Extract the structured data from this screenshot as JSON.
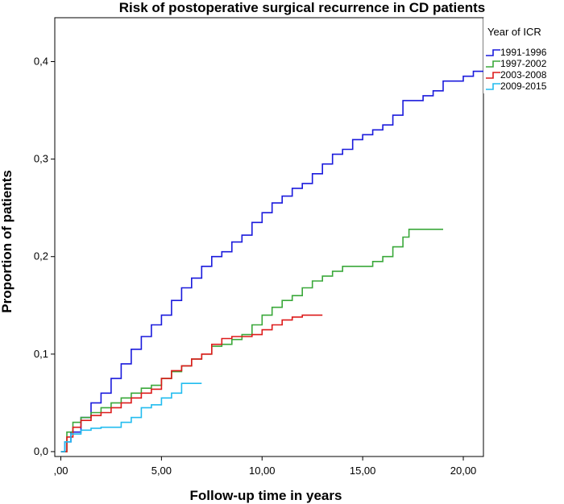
{
  "chart_data": {
    "type": "line",
    "step": true,
    "title": "Risk of postoperative surgical recurrence in CD patients",
    "xlabel": "Follow-up time in years",
    "ylabel": "Proportion of patients",
    "xlim": [
      -0.3,
      21
    ],
    "ylim": [
      -0.005,
      0.445
    ],
    "x_ticks": [
      0,
      5,
      10,
      15,
      20
    ],
    "x_tick_labels": [
      ",00",
      "5,00",
      "10,00",
      "15,00",
      "20,00"
    ],
    "y_ticks": [
      0,
      0.1,
      0.2,
      0.3,
      0.4
    ],
    "y_tick_labels": [
      "0,0",
      "0,1",
      "0,2",
      "0,3",
      "0,4"
    ],
    "legend": {
      "title": "Year of ICR",
      "position": "top-right"
    },
    "series": [
      {
        "name": "1991-1996",
        "color": "#1a1adc",
        "x": [
          0,
          0.2,
          0.5,
          1.0,
          1.5,
          2.0,
          2.5,
          3.0,
          3.5,
          4.0,
          4.5,
          5.0,
          5.5,
          6.0,
          6.5,
          7.0,
          7.5,
          8.0,
          8.5,
          9.0,
          9.5,
          10.0,
          10.5,
          11.0,
          11.5,
          12.0,
          12.5,
          13.0,
          13.5,
          14.0,
          14.5,
          15.0,
          15.5,
          16.0,
          16.5,
          17.0,
          17.5,
          18.0,
          18.5,
          19.0,
          19.5,
          20.0,
          20.5,
          21.0
        ],
        "y": [
          0.0,
          0.01,
          0.02,
          0.035,
          0.05,
          0.06,
          0.075,
          0.09,
          0.105,
          0.118,
          0.13,
          0.14,
          0.155,
          0.168,
          0.178,
          0.19,
          0.2,
          0.205,
          0.215,
          0.222,
          0.235,
          0.245,
          0.255,
          0.262,
          0.27,
          0.275,
          0.285,
          0.295,
          0.305,
          0.31,
          0.32,
          0.325,
          0.33,
          0.335,
          0.345,
          0.36,
          0.36,
          0.365,
          0.37,
          0.38,
          0.38,
          0.385,
          0.39,
          0.39
        ]
      },
      {
        "name": "1997-2002",
        "color": "#3aa83a",
        "x": [
          0,
          0.3,
          0.6,
          1.0,
          1.5,
          2.0,
          2.5,
          3.0,
          3.5,
          4.0,
          4.5,
          5.0,
          5.5,
          6.0,
          6.5,
          7.0,
          7.5,
          8.0,
          8.5,
          9.0,
          9.5,
          10.0,
          10.5,
          11.0,
          11.5,
          12.0,
          12.5,
          13.0,
          13.5,
          14.0,
          14.5,
          15.0,
          15.5,
          16.0,
          16.5,
          17.0,
          17.3,
          18.0,
          19.0
        ],
        "y": [
          0.0,
          0.02,
          0.03,
          0.035,
          0.04,
          0.045,
          0.05,
          0.055,
          0.06,
          0.065,
          0.068,
          0.075,
          0.082,
          0.088,
          0.095,
          0.1,
          0.108,
          0.11,
          0.115,
          0.12,
          0.13,
          0.14,
          0.148,
          0.155,
          0.16,
          0.168,
          0.175,
          0.18,
          0.185,
          0.19,
          0.19,
          0.19,
          0.195,
          0.2,
          0.21,
          0.22,
          0.228,
          0.228,
          0.228
        ]
      },
      {
        "name": "2003-2008",
        "color": "#dd1a1a",
        "x": [
          0,
          0.3,
          0.6,
          1.0,
          1.5,
          2.0,
          2.5,
          3.0,
          3.5,
          4.0,
          4.5,
          5.0,
          5.5,
          6.0,
          6.5,
          7.0,
          7.5,
          8.0,
          8.5,
          9.0,
          9.5,
          10.0,
          10.5,
          11.0,
          11.5,
          12.0,
          12.5,
          13.0
        ],
        "y": [
          0.0,
          0.015,
          0.025,
          0.032,
          0.037,
          0.04,
          0.045,
          0.05,
          0.055,
          0.06,
          0.064,
          0.075,
          0.083,
          0.088,
          0.095,
          0.1,
          0.11,
          0.116,
          0.118,
          0.118,
          0.12,
          0.125,
          0.13,
          0.135,
          0.138,
          0.14,
          0.14,
          0.14
        ]
      },
      {
        "name": "2009-2015",
        "color": "#22bcef",
        "x": [
          0,
          0.2,
          0.5,
          1.0,
          1.5,
          2.0,
          2.5,
          3.0,
          3.5,
          4.0,
          4.5,
          5.0,
          5.5,
          6.0,
          6.5,
          7.0
        ],
        "y": [
          0.0,
          0.01,
          0.018,
          0.022,
          0.024,
          0.025,
          0.025,
          0.03,
          0.035,
          0.045,
          0.048,
          0.055,
          0.06,
          0.07,
          0.07,
          0.07
        ]
      }
    ]
  }
}
